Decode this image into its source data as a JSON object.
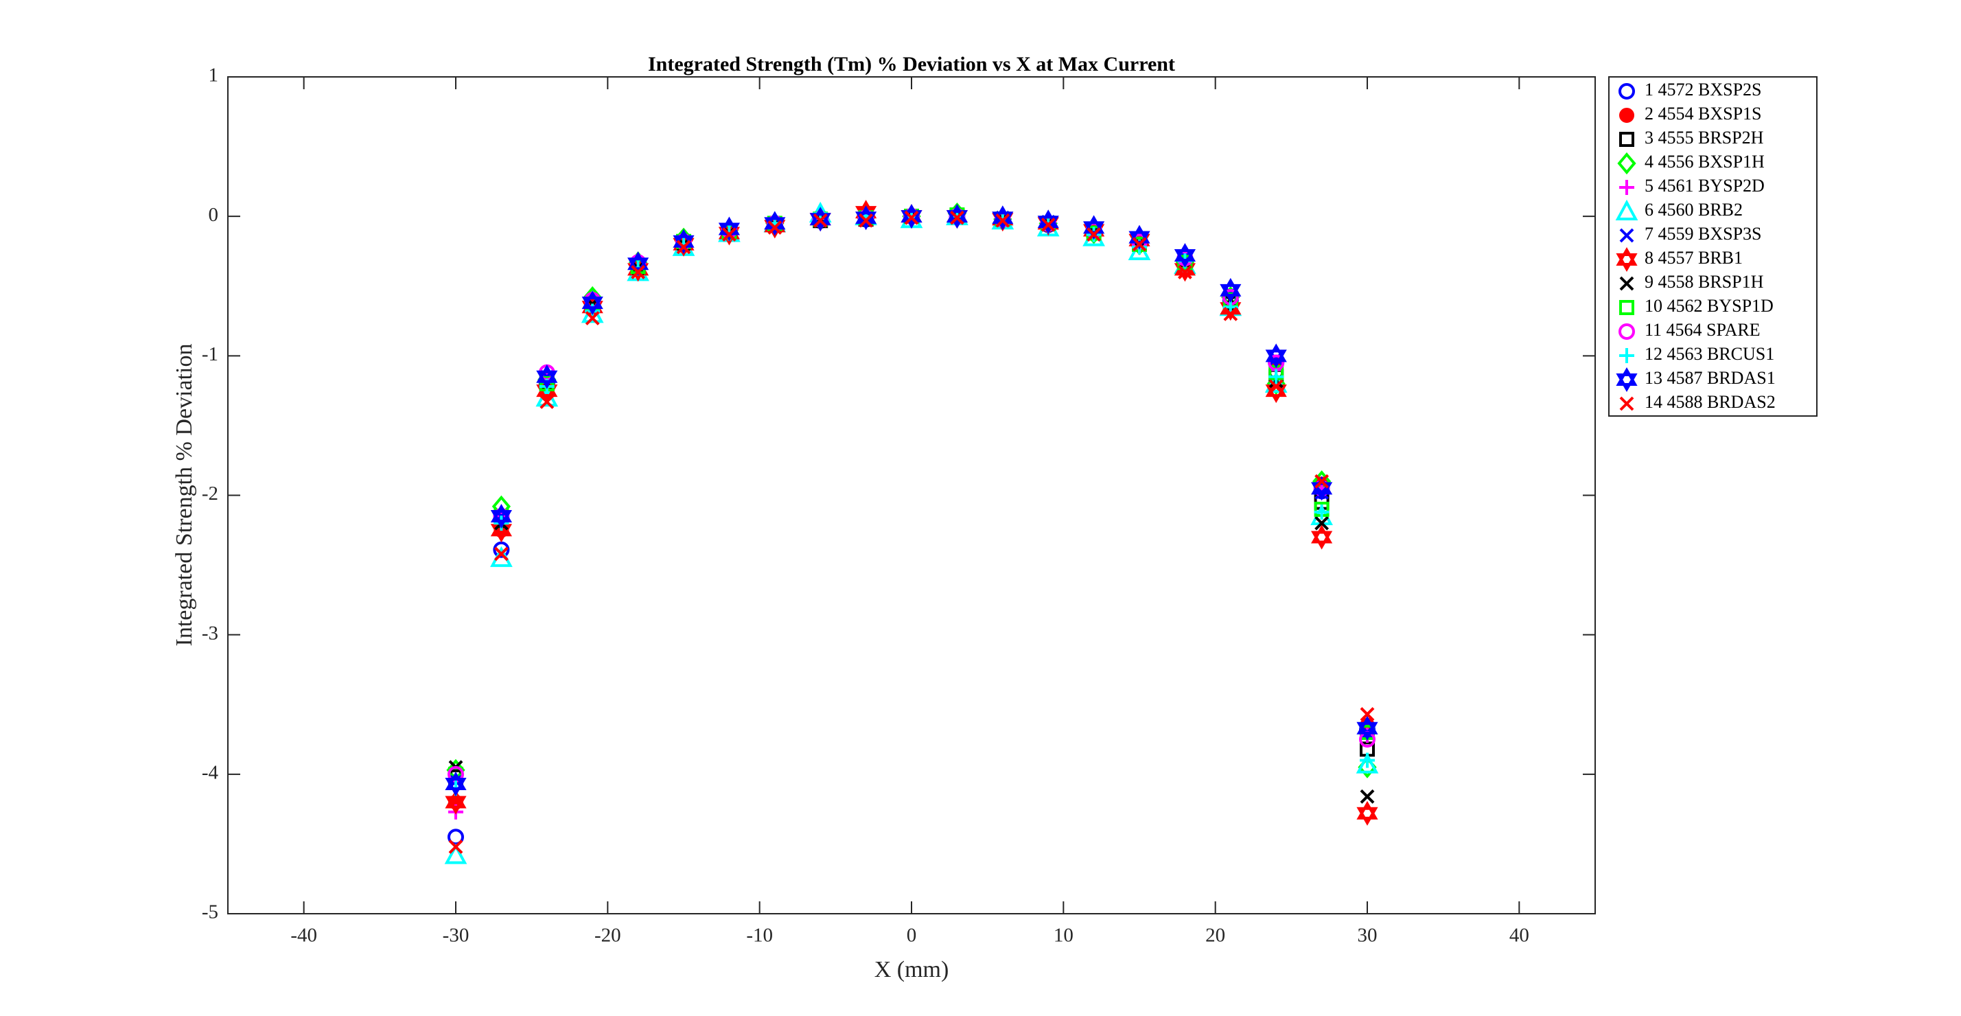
{
  "chart_data": {
    "type": "scatter",
    "title": "Integrated Strength (Tm) % Deviation vs X at Max Current",
    "xlabel": "X (mm)",
    "ylabel": "Integrated Strength % Deviation",
    "x": [
      -30,
      -27,
      -24,
      -21,
      -18,
      -15,
      -12,
      -9,
      -6,
      -3,
      0,
      3,
      6,
      9,
      12,
      15,
      18,
      21,
      24,
      27,
      30
    ],
    "xlim": [
      -45,
      45
    ],
    "xticks": [
      -40,
      -30,
      -20,
      -10,
      0,
      10,
      20,
      30,
      40
    ],
    "ylim": [
      -5,
      1
    ],
    "yticks": [
      -5,
      -4,
      -3,
      -2,
      -1,
      0,
      1
    ],
    "legend": "outside-right",
    "series": [
      {
        "name": "1 4572 BXSP2S",
        "color": "#0000ff",
        "marker": "circle",
        "values": [
          -4.45,
          -2.39,
          -1.2,
          -0.63,
          -0.35,
          -0.19,
          -0.1,
          -0.06,
          -0.03,
          -0.02,
          0,
          0,
          -0.02,
          -0.06,
          -0.11,
          -0.2,
          -0.3,
          -0.6,
          -1.05,
          -1.97,
          -3.68
        ]
      },
      {
        "name": "2 4554 BXSP1S",
        "color": "#ff0000",
        "marker": "filled-circle",
        "values": [
          -4.2,
          -2.25,
          -1.27,
          -0.65,
          -0.38,
          -0.21,
          -0.12,
          -0.07,
          -0.03,
          -0.02,
          0,
          -0.01,
          -0.03,
          -0.06,
          -0.12,
          -0.2,
          -0.35,
          -0.65,
          -1.05,
          -1.92,
          -3.65
        ]
      },
      {
        "name": "3 4555 BRSP2H",
        "color": "#000000",
        "marker": "square",
        "values": [
          -4.02,
          -2.18,
          -1.2,
          -0.63,
          -0.36,
          -0.2,
          -0.11,
          -0.06,
          -0.03,
          -0.02,
          0,
          0,
          -0.03,
          -0.05,
          -0.1,
          -0.2,
          -0.33,
          -0.62,
          -1.15,
          -2.05,
          -3.82
        ]
      },
      {
        "name": "4 4556 BXSP1H",
        "color": "#00ff00",
        "marker": "diamond",
        "values": [
          -3.97,
          -2.08,
          -1.17,
          -0.58,
          -0.33,
          -0.16,
          -0.1,
          -0.05,
          -0.02,
          -0.01,
          0,
          0.02,
          -0.02,
          -0.05,
          -0.12,
          -0.2,
          -0.33,
          -0.58,
          -1.2,
          -1.9,
          -3.95
        ]
      },
      {
        "name": "5 4561 BYSP2D",
        "color": "#ff00ff",
        "marker": "plus",
        "values": [
          -4.27,
          -2.15,
          -1.15,
          -0.62,
          -0.35,
          -0.2,
          -0.11,
          -0.06,
          -0.02,
          -0.01,
          0,
          0,
          -0.02,
          -0.07,
          -0.1,
          -0.18,
          -0.3,
          -0.58,
          -1.1,
          -1.95,
          -3.72
        ]
      },
      {
        "name": "6 4560 BRB2",
        "color": "#00ffff",
        "marker": "triangle",
        "values": [
          -4.58,
          -2.45,
          -1.3,
          -0.7,
          -0.4,
          -0.22,
          -0.12,
          -0.05,
          0.02,
          0,
          -0.02,
          0,
          -0.03,
          -0.08,
          -0.15,
          -0.25,
          -0.35,
          -0.65,
          -1.2,
          -2.15,
          -3.93
        ]
      },
      {
        "name": "7 4559 BXSP3S",
        "color": "#0000ff",
        "marker": "x",
        "values": [
          -4.05,
          -2.15,
          -1.15,
          -0.62,
          -0.35,
          -0.19,
          -0.1,
          -0.05,
          -0.02,
          -0.01,
          0,
          0,
          -0.01,
          -0.04,
          -0.09,
          -0.17,
          -0.29,
          -0.55,
          -1.02,
          -1.98,
          -3.7
        ]
      },
      {
        "name": "8 4557 BRB1",
        "color": "#ff0000",
        "marker": "star",
        "values": [
          -4.2,
          -2.25,
          -1.25,
          -0.65,
          -0.38,
          -0.2,
          -0.12,
          -0.07,
          -0.02,
          0.03,
          0,
          0,
          -0.02,
          -0.05,
          -0.1,
          -0.17,
          -0.38,
          -0.66,
          -1.25,
          -2.3,
          -4.28
        ]
      },
      {
        "name": "9 4558 BRSP1H",
        "color": "#000000",
        "marker": "x",
        "values": [
          -3.95,
          -2.2,
          -1.2,
          -0.63,
          -0.37,
          -0.2,
          -0.12,
          -0.06,
          -0.02,
          -0.02,
          0,
          0,
          -0.02,
          -0.05,
          -0.1,
          -0.18,
          -0.33,
          -0.6,
          -1.18,
          -2.2,
          -4.16
        ]
      },
      {
        "name": "10 4562 BYSP1D",
        "color": "#00ff00",
        "marker": "square",
        "values": [
          -4.0,
          -2.15,
          -1.2,
          -0.62,
          -0.36,
          -0.18,
          -0.11,
          -0.05,
          -0.02,
          -0.01,
          0,
          0.01,
          -0.02,
          -0.05,
          -0.12,
          -0.2,
          -0.33,
          -0.6,
          -1.12,
          -2.1,
          -3.7
        ]
      },
      {
        "name": "11 4564 SPARE",
        "color": "#ff00ff",
        "marker": "circle",
        "values": [
          -4.0,
          -2.15,
          -1.12,
          -0.6,
          -0.33,
          -0.18,
          -0.1,
          -0.05,
          -0.02,
          -0.01,
          0,
          0,
          -0.02,
          -0.05,
          -0.1,
          -0.18,
          -0.3,
          -0.58,
          -1.05,
          -1.95,
          -3.75
        ]
      },
      {
        "name": "12 4563 BRCUS1",
        "color": "#00ffff",
        "marker": "plus",
        "values": [
          -4.1,
          -2.2,
          -1.22,
          -0.68,
          -0.37,
          -0.2,
          -0.12,
          -0.05,
          0.02,
          0,
          -0.01,
          0,
          -0.02,
          -0.07,
          -0.13,
          -0.22,
          -0.32,
          -0.65,
          -1.15,
          -2.12,
          -3.9
        ]
      },
      {
        "name": "13 4587 BRDAS1",
        "color": "#0000ff",
        "marker": "star",
        "values": [
          -4.07,
          -2.15,
          -1.15,
          -0.62,
          -0.34,
          -0.18,
          -0.09,
          -0.05,
          -0.02,
          -0.01,
          0,
          0,
          -0.01,
          -0.04,
          -0.08,
          -0.15,
          -0.28,
          -0.53,
          -1.0,
          -1.95,
          -3.67
        ]
      },
      {
        "name": "14 4588 BRDAS2",
        "color": "#ff0000",
        "marker": "x",
        "values": [
          -4.52,
          -2.42,
          -1.33,
          -0.73,
          -0.4,
          -0.22,
          -0.13,
          -0.08,
          -0.03,
          -0.03,
          -0.01,
          -0.01,
          -0.03,
          -0.06,
          -0.13,
          -0.2,
          -0.4,
          -0.7,
          -1.22,
          -1.9,
          -3.57
        ]
      }
    ]
  }
}
